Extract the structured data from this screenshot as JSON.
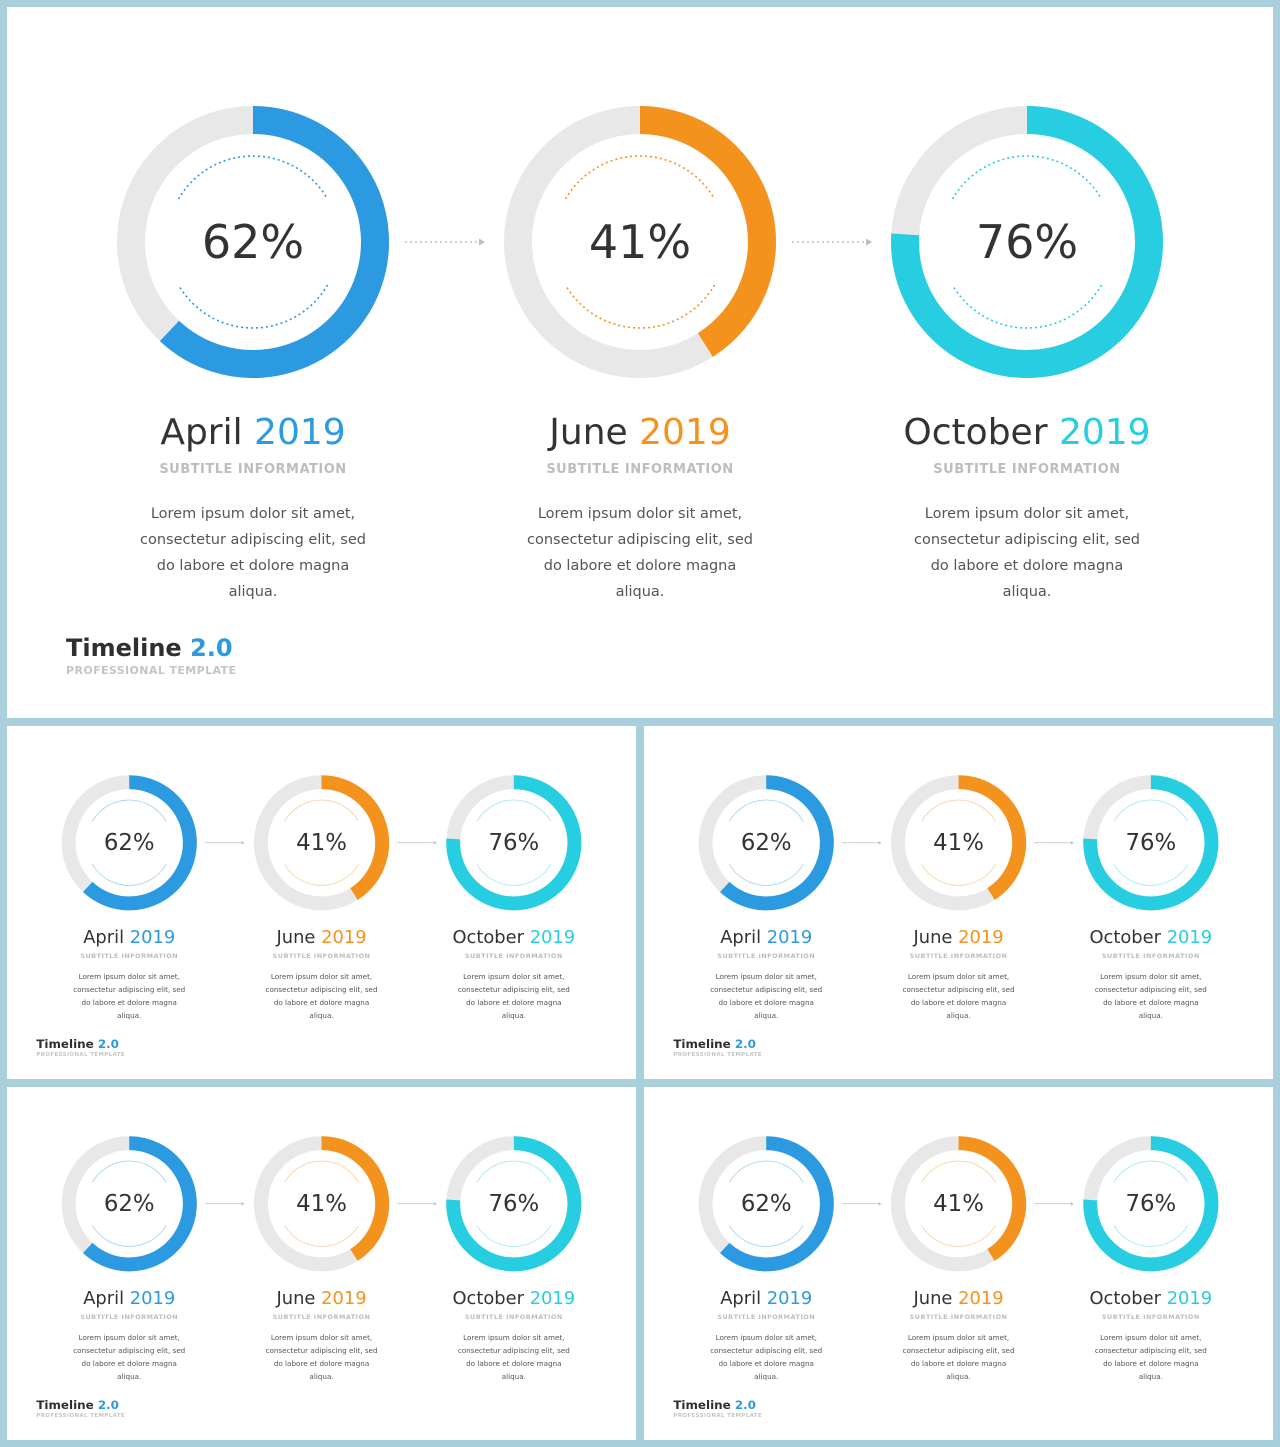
{
  "colors": {
    "blue": "#2b9ae0",
    "orange": "#f4921e",
    "cyan": "#27cde0",
    "track": "#e8e8e8",
    "text": "#333333",
    "sub": "#bdbdbd"
  },
  "brand": {
    "title": "Timeline",
    "version": "2.0",
    "subtitle": "PROFESSIONAL TEMPLATE"
  },
  "items": [
    {
      "percent_label": "62%",
      "percent": 62,
      "month": "April",
      "year": "2019",
      "subtitle": "SUBTITLE INFORMATION",
      "description": "Lorem ipsum dolor sit amet, consectetur adipiscing elit, sed do labore et dolore magna aliqua.",
      "color": "#2b9ae0"
    },
    {
      "percent_label": "41%",
      "percent": 41,
      "month": "June",
      "year": "2019",
      "subtitle": "SUBTITLE INFORMATION",
      "description": "Lorem ipsum dolor sit amet, consectetur adipiscing elit, sed do labore et dolore magna aliqua.",
      "color": "#f4921e"
    },
    {
      "percent_label": "76%",
      "percent": 76,
      "month": "October",
      "year": "2019",
      "subtitle": "SUBTITLE INFORMATION",
      "description": "Lorem ipsum dolor sit amet, consectetur adipiscing elit, sed do labore et dolore magna aliqua.",
      "color": "#27cde0"
    }
  ]
}
